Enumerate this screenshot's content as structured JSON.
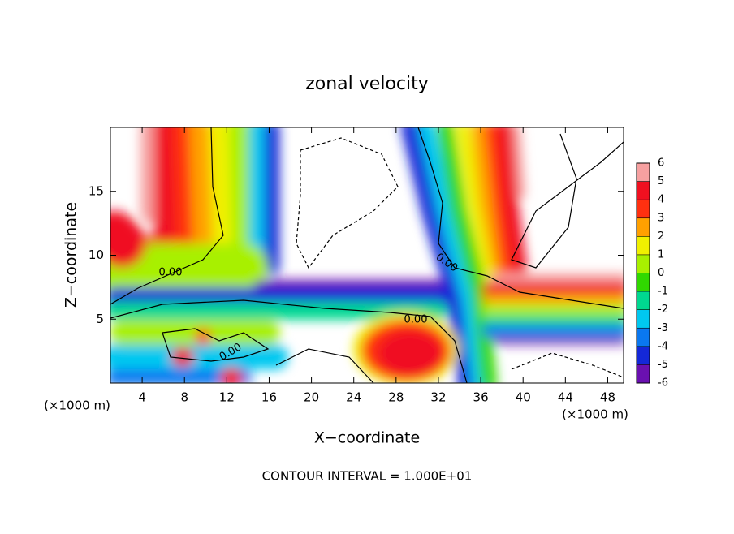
{
  "chart_data": {
    "type": "contour",
    "title": "zonal velocity",
    "x_label": "X−coordinate",
    "y_label": "Z−coordinate",
    "x_unit": "(×1000 m)",
    "xlim": [
      1,
      49.5
    ],
    "ylim": [
      0,
      20
    ],
    "xticks": [
      4,
      8,
      12,
      16,
      20,
      24,
      28,
      32,
      36,
      40,
      44,
      48
    ],
    "yticks": [
      5,
      10,
      15
    ],
    "contour_labels": [
      "0.00",
      "0.00",
      "0.00",
      "0.00"
    ],
    "footnote": "CONTOUR INTERVAL = 1.000E+01",
    "colorbar": {
      "lim": [
        -6,
        6
      ],
      "ticks": [
        -6,
        -5,
        -4,
        -3,
        -2,
        -1,
        0,
        1,
        2,
        3,
        4,
        5,
        6
      ],
      "colors": [
        "#6a10b0",
        "#1428d8",
        "#0a78f0",
        "#00c8f0",
        "#00d890",
        "#30d800",
        "#a8f000",
        "#f0f000",
        "#ffa000",
        "#ff3010",
        "#f01020",
        "#f6a0a0"
      ]
    }
  }
}
